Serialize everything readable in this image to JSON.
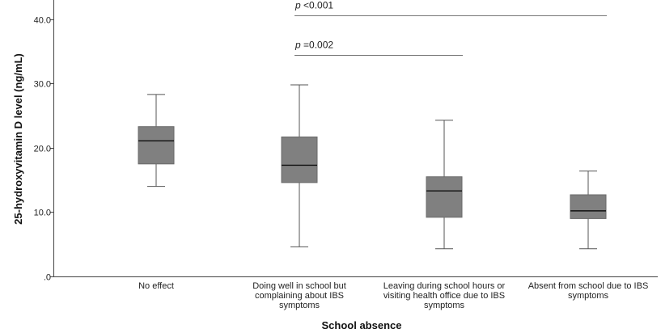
{
  "chart_data": {
    "type": "box",
    "xlabel": "School absence",
    "ylabel": "25-hydroxyvitamin D level (ng/mL)",
    "ylim": [
      0,
      43
    ],
    "yticks": [
      {
        "value": 0,
        "label": ".0"
      },
      {
        "value": 10,
        "label": "10.0"
      },
      {
        "value": 20,
        "label": "20.0"
      },
      {
        "value": 30,
        "label": "30.0"
      },
      {
        "value": 40,
        "label": "40.0"
      }
    ],
    "categories": [
      {
        "label_lines": [
          "No effect"
        ],
        "whisker_low": 14.0,
        "q1": 17.5,
        "median": 21.1,
        "q3": 23.3,
        "whisker_high": 28.3
      },
      {
        "label_lines": [
          "Doing well in school but",
          "complaining about IBS",
          "symptoms"
        ],
        "whisker_low": 4.6,
        "q1": 14.6,
        "median": 17.3,
        "q3": 21.7,
        "whisker_high": 29.8
      },
      {
        "label_lines": [
          "Leaving during school hours or",
          "visiting health office due to IBS",
          "symptoms"
        ],
        "whisker_low": 4.3,
        "q1": 9.2,
        "median": 13.3,
        "q3": 15.5,
        "whisker_high": 24.3
      },
      {
        "label_lines": [
          "Absent from school due to IBS",
          "symptoms"
        ],
        "whisker_low": 4.3,
        "q1": 9.0,
        "median": 10.2,
        "q3": 12.7,
        "whisker_high": 16.4
      }
    ],
    "comparisons": [
      {
        "from": 1,
        "to": 3,
        "y": 40.6,
        "p_symbol": "p",
        "p_text": " <0.001"
      },
      {
        "from": 1,
        "to": 2,
        "y": 34.5,
        "p_symbol": "p",
        "p_text": " =0.002"
      }
    ],
    "colors": {
      "box_fill": "#808080",
      "line": "#555555",
      "median": "#111111"
    }
  }
}
